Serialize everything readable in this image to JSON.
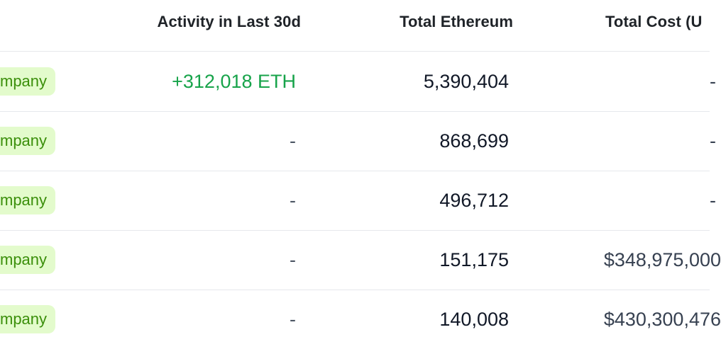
{
  "header": {
    "activity": "Activity in Last 30d",
    "ethereum": "Total Ethereum",
    "cost": "Total Cost (U"
  },
  "rows": [
    {
      "type": "mpany",
      "activity": "+312,018 ETH",
      "ethereum": "5,390,404",
      "cost": "-"
    },
    {
      "type": "mpany",
      "activity": "-",
      "ethereum": "868,699",
      "cost": "-"
    },
    {
      "type": "mpany",
      "activity": "-",
      "ethereum": "496,712",
      "cost": "-"
    },
    {
      "type": "mpany",
      "activity": "-",
      "ethereum": "151,175",
      "cost": "$348,975,000"
    },
    {
      "type": "mpany",
      "activity": "-",
      "ethereum": "140,008",
      "cost": "$430,300,476"
    }
  ],
  "colors": {
    "badge_bg": "#e3fbcc",
    "badge_text": "#3b8f0b",
    "positive": "#17a34a",
    "divider": "#e6e8ec"
  }
}
